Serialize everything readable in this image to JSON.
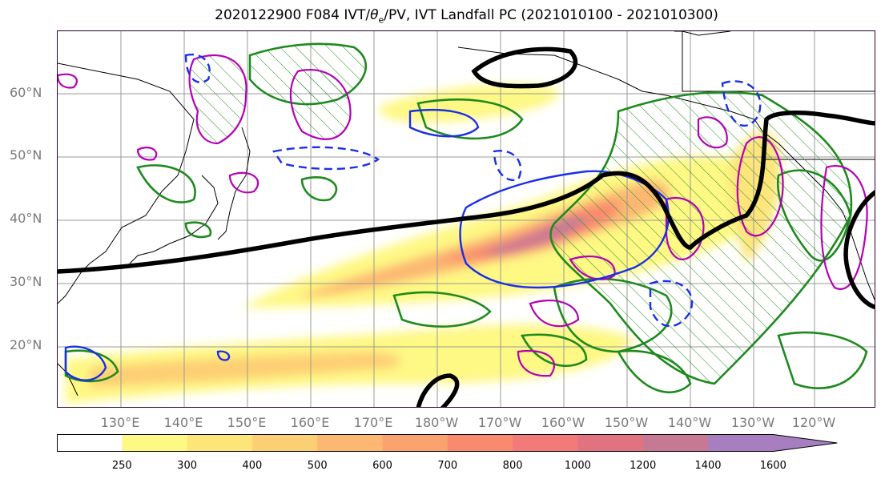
{
  "title_prefix": "2020122900 F084 IVT/",
  "title_theta": "θ",
  "title_sub": "e",
  "title_suffix": "/PV, IVT Landfall PC (2021010100 - 2021010300)",
  "lat_labels": [
    "60°N",
    "50°N",
    "40°N",
    "30°N",
    "20°N"
  ],
  "lon_labels": [
    "130°E",
    "140°E",
    "150°E",
    "160°E",
    "170°E",
    "180°W",
    "170°W",
    "160°W",
    "150°W",
    "140°W",
    "130°W",
    "120°W"
  ],
  "colorbar": {
    "levels": [
      250,
      300,
      400,
      500,
      600,
      700,
      800,
      1000,
      1200,
      1400,
      1600
    ],
    "tick_labels": [
      "250",
      "300",
      "400",
      "500",
      "600",
      "700",
      "800",
      "1000",
      "1200",
      "1400",
      "1600"
    ],
    "colors": [
      "#ffffff",
      "#fef884",
      "#fde57a",
      "#fdcf75",
      "#fcb872",
      "#fba36f",
      "#f98a6e",
      "#f27a78",
      "#e0737f",
      "#c77994",
      "#a77fc0"
    ]
  },
  "colors": {
    "geopotential_contour": "#000000",
    "theta_e_contour": "#1a2fe6",
    "pv_contour": "#b400b4",
    "ivt_landfall_pc_contour": "#1e8a1e",
    "coastline": "#000000",
    "grid": "#9a9a9a"
  }
}
